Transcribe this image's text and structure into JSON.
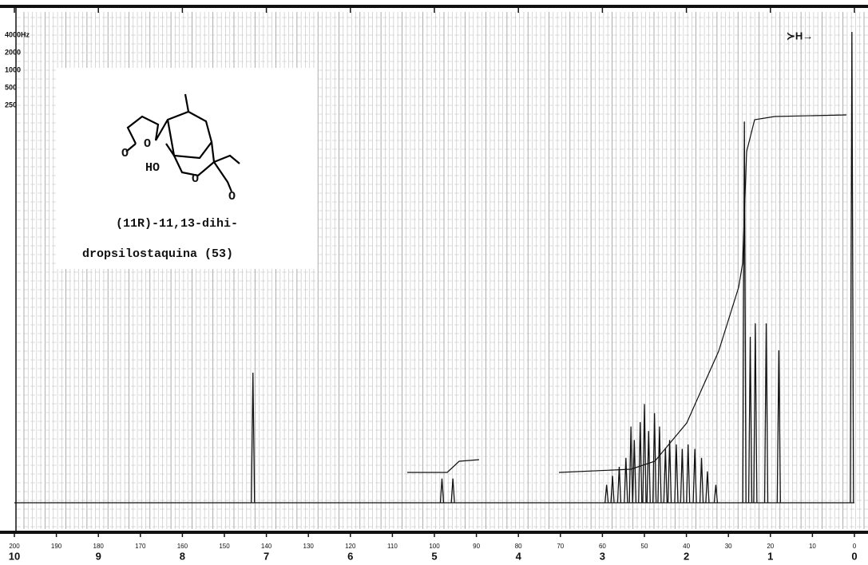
{
  "chart_data": {
    "type": "spectrum",
    "color": "#111111",
    "xlim": [
      10,
      0
    ],
    "xticks": [
      10,
      9,
      8,
      7,
      6,
      5,
      4,
      3,
      2,
      1,
      0
    ],
    "x2lim": [
      200,
      0
    ],
    "x2ticks": [
      200,
      190,
      180,
      170,
      160,
      150,
      140,
      130,
      120,
      110,
      100,
      90,
      80,
      70,
      60,
      50,
      40,
      30,
      20,
      10,
      0
    ],
    "ylim": [
      0,
      105
    ],
    "grid": true,
    "sweep_labels": [
      "4000Hz",
      "2000",
      "1000",
      "500",
      "250"
    ],
    "marker_label": "≻H→",
    "compound_label": [
      "(11R)-11,13-dihi-",
      "dropsilostaquina (53)"
    ],
    "structure_labels": [
      "O",
      "O",
      "HO",
      "O",
      "O"
    ],
    "x": [
      7.16,
      4.91,
      4.78,
      2.95,
      2.88,
      2.8,
      2.72,
      2.66,
      2.62,
      2.55,
      2.5,
      2.45,
      2.38,
      2.32,
      2.25,
      2.2,
      2.12,
      2.05,
      1.98,
      1.9,
      1.82,
      1.75,
      1.65,
      1.31,
      1.24,
      1.18,
      1.05,
      0.9,
      0.03
    ],
    "values": [
      29,
      5.4,
      5.4,
      4,
      6,
      8,
      10,
      17,
      14,
      18,
      22,
      16,
      20,
      17,
      12,
      14,
      13,
      12,
      13,
      12,
      10,
      7,
      4,
      85,
      37,
      40,
      40,
      34,
      105
    ]
  }
}
